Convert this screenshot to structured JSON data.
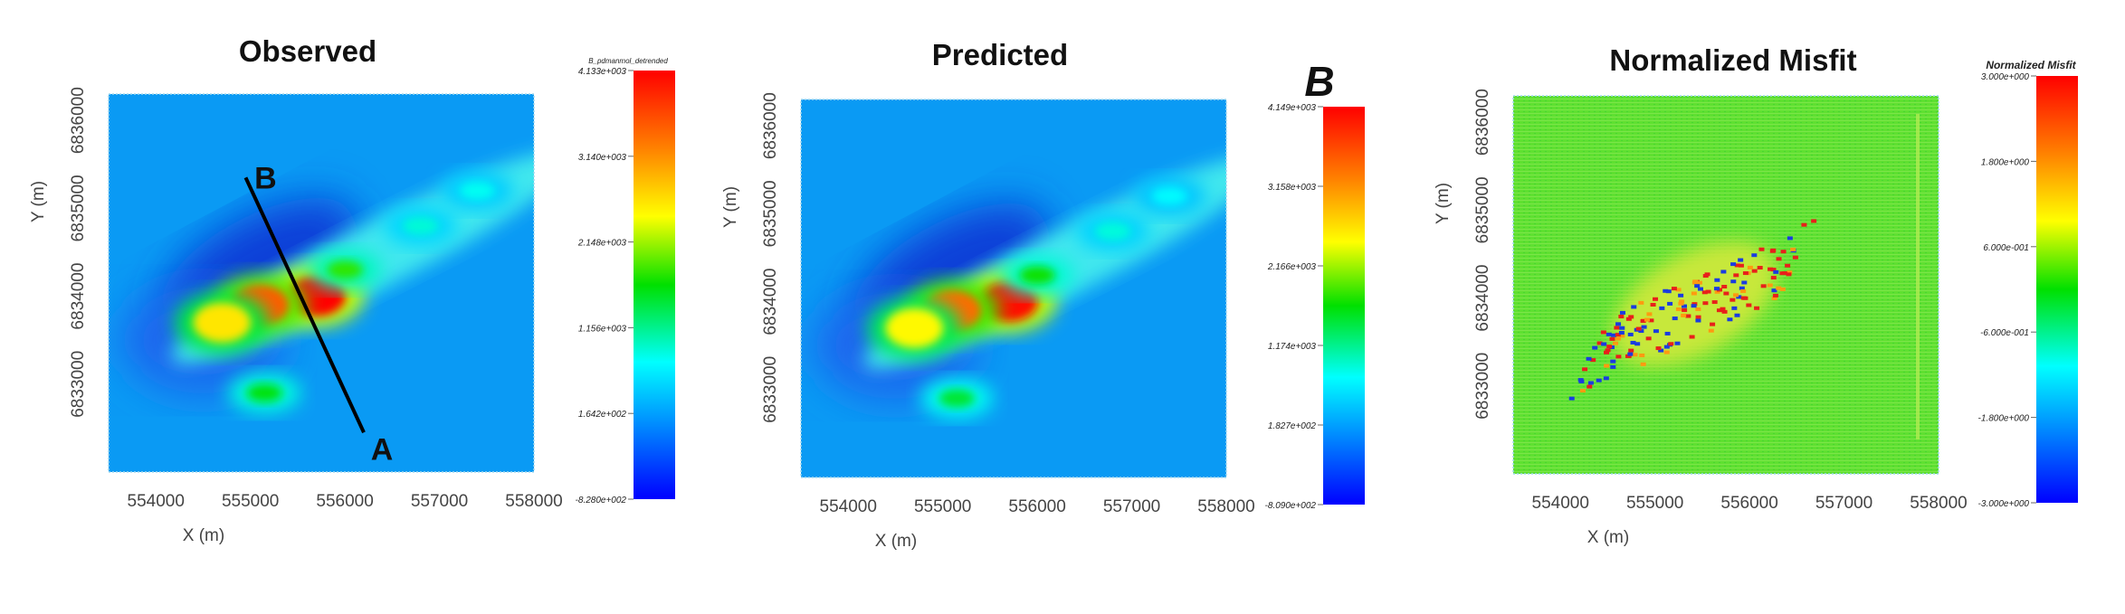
{
  "chart_data": [
    {
      "type": "heatmap",
      "title": "Observed",
      "xlabel": "X (m)",
      "ylabel": "Y (m)",
      "xlim": [
        553500,
        558000
      ],
      "ylim": [
        6832000,
        6836300
      ],
      "xticks": [
        "554000",
        "555000",
        "556000",
        "557000",
        "558000"
      ],
      "yticks": [
        "6833000",
        "6834000",
        "6835000",
        "6836000"
      ],
      "colorbar": {
        "title": "B_pdmanmol_detrended",
        "ticks": [
          "4.133e+003",
          "3.140e+003",
          "2.148e+003",
          "1.156e+003",
          "1.642e+002",
          "-8.280e+002"
        ],
        "range": [
          -828,
          4133
        ]
      },
      "profile_line": {
        "start_label": "A",
        "end_label": "B",
        "start": [
          556200,
          6832450
        ],
        "end": [
          554950,
          6835350
        ]
      },
      "anomalies": [
        {
          "x": 555700,
          "y": 6834000,
          "value": 4100
        },
        {
          "x": 555100,
          "y": 6833900,
          "value": 3500
        },
        {
          "x": 554700,
          "y": 6833700,
          "value": 2600
        },
        {
          "x": 556000,
          "y": 6834300,
          "value": 1800
        },
        {
          "x": 555150,
          "y": 6832900,
          "value": 1600
        },
        {
          "x": 556800,
          "y": 6834800,
          "value": 900
        },
        {
          "x": 557400,
          "y": 6835200,
          "value": 800
        }
      ]
    },
    {
      "type": "heatmap",
      "title": "Predicted",
      "xlabel": "X (m)",
      "ylabel": "Y (m)",
      "xlim": [
        553500,
        558000
      ],
      "ylim": [
        6832000,
        6836300
      ],
      "xticks": [
        "554000",
        "555000",
        "556000",
        "557000",
        "558000"
      ],
      "yticks": [
        "6833000",
        "6834000",
        "6835000",
        "6836000"
      ],
      "colorbar": {
        "title": "B",
        "ticks": [
          "4.149e+003",
          "3.158e+003",
          "2.166e+003",
          "1.174e+003",
          "1.827e+002",
          "-8.090e+002"
        ],
        "range": [
          -809,
          4149
        ]
      },
      "anomalies": [
        {
          "x": 555700,
          "y": 6834000,
          "value": 4100
        },
        {
          "x": 555100,
          "y": 6833900,
          "value": 3400
        },
        {
          "x": 554700,
          "y": 6833700,
          "value": 2500
        },
        {
          "x": 556000,
          "y": 6834300,
          "value": 1700
        },
        {
          "x": 555150,
          "y": 6832900,
          "value": 1500
        },
        {
          "x": 556800,
          "y": 6834800,
          "value": 900
        },
        {
          "x": 557400,
          "y": 6835200,
          "value": 750
        }
      ]
    },
    {
      "type": "heatmap",
      "title": "Normalized Misfit",
      "xlabel": "X (m)",
      "ylabel": "Y (m)",
      "xlim": [
        553500,
        558000
      ],
      "ylim": [
        6832000,
        6836300
      ],
      "xticks": [
        "554000",
        "555000",
        "556000",
        "557000",
        "558000"
      ],
      "yticks": [
        "6833000",
        "6834000",
        "6835000",
        "6836000"
      ],
      "colorbar": {
        "title": "Normalized Misfit",
        "ticks": [
          "3.000e+000",
          "1.800e+000",
          "6.000e-001",
          "-6.000e-001",
          "-1.800e+000",
          "-3.000e+000"
        ],
        "range": [
          -3,
          3
        ]
      }
    }
  ]
}
